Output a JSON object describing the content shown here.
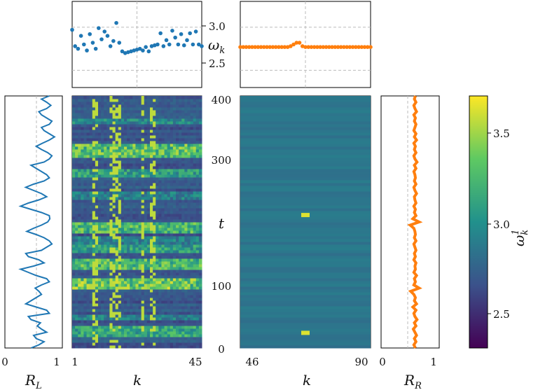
{
  "chart_data": [
    {
      "panel": "frequency-left",
      "type": "scatter",
      "xlabel": "",
      "ylabel": "ω_k",
      "yticks": [
        "2.5",
        "3.0"
      ],
      "ylim": [
        2.3,
        3.3
      ],
      "xlim": [
        1,
        45
      ],
      "color": "#1f77b4",
      "x": [
        1,
        2,
        3,
        4,
        5,
        6,
        7,
        8,
        9,
        10,
        11,
        12,
        13,
        14,
        15,
        16,
        17,
        18,
        19,
        20,
        21,
        22,
        23,
        24,
        25,
        26,
        27,
        28,
        29,
        30,
        31,
        32,
        33,
        34,
        35,
        36,
        37,
        38,
        39,
        40,
        41,
        42,
        43,
        44,
        45
      ],
      "values": [
        2.97,
        2.78,
        2.75,
        2.9,
        2.8,
        2.73,
        2.92,
        2.82,
        2.75,
        2.99,
        2.86,
        2.95,
        2.9,
        2.78,
        2.84,
        3.05,
        2.82,
        2.72,
        2.7,
        2.71,
        2.72,
        2.73,
        2.74,
        2.75,
        2.73,
        2.77,
        2.72,
        2.78,
        2.79,
        2.8,
        2.93,
        2.78,
        2.85,
        2.8,
        2.96,
        2.88,
        2.8,
        2.92,
        2.79,
        2.85,
        2.93,
        2.8,
        2.95,
        2.8,
        2.78
      ]
    },
    {
      "panel": "frequency-right",
      "type": "scatter",
      "xlim": [
        46,
        90
      ],
      "ylim": [
        2.3,
        3.3
      ],
      "color": "#ff7f0e",
      "x": [
        46,
        47,
        48,
        49,
        50,
        51,
        52,
        53,
        54,
        55,
        56,
        57,
        58,
        59,
        60,
        61,
        62,
        63,
        64,
        65,
        66,
        67,
        68,
        69,
        70,
        71,
        72,
        73,
        74,
        75,
        76,
        77,
        78,
        79,
        80,
        81,
        82,
        83,
        84,
        85,
        86,
        87,
        88,
        89,
        90
      ],
      "values": [
        2.77,
        2.77,
        2.77,
        2.77,
        2.77,
        2.77,
        2.77,
        2.77,
        2.77,
        2.77,
        2.77,
        2.77,
        2.77,
        2.77,
        2.77,
        2.77,
        2.77,
        2.78,
        2.8,
        2.82,
        2.82,
        2.78,
        2.77,
        2.77,
        2.77,
        2.77,
        2.77,
        2.77,
        2.77,
        2.77,
        2.77,
        2.77,
        2.77,
        2.77,
        2.77,
        2.77,
        2.77,
        2.77,
        2.77,
        2.77,
        2.77,
        2.77,
        2.77,
        2.77,
        2.77
      ]
    },
    {
      "panel": "order-left",
      "type": "line",
      "xlabel": "R_L",
      "xticks": [
        "0",
        "1"
      ],
      "xlim": [
        0,
        1.1
      ],
      "ylim": [
        0,
        400
      ],
      "color": "#1f77b4",
      "x": [
        0.5,
        0.65,
        0.75,
        0.6,
        0.55,
        0.8,
        0.7,
        0.62,
        0.68,
        0.5,
        0.45,
        0.85,
        0.8,
        0.6,
        0.4,
        0.5,
        0.6,
        0.7,
        0.65,
        0.58,
        0.7,
        0.85,
        0.8,
        0.6,
        0.45,
        0.3,
        0.55,
        0.75,
        0.65,
        0.45,
        0.4,
        0.7,
        0.8,
        0.9,
        0.85,
        0.75,
        0.6,
        0.42,
        0.55,
        0.7,
        0.82,
        0.86,
        0.85,
        0.7,
        0.5,
        0.3,
        0.45,
        0.65,
        0.8,
        0.7,
        0.55,
        0.4,
        0.55,
        0.75,
        0.85,
        0.8,
        0.7,
        0.6,
        0.5,
        0.75,
        0.85,
        0.9,
        0.82,
        0.7,
        0.6,
        0.72,
        0.85,
        0.95,
        0.85,
        0.75,
        0.7,
        0.85,
        0.9,
        0.8,
        0.7,
        0.65,
        0.8,
        0.88,
        0.8,
        0.7,
        0.85
      ],
      "values": [
        0,
        5,
        10,
        15,
        20,
        25,
        30,
        35,
        40,
        45,
        50,
        55,
        60,
        65,
        70,
        75,
        80,
        85,
        90,
        95,
        100,
        105,
        110,
        115,
        120,
        125,
        130,
        135,
        140,
        145,
        150,
        155,
        160,
        165,
        170,
        175,
        180,
        185,
        190,
        195,
        200,
        205,
        210,
        215,
        220,
        225,
        230,
        235,
        240,
        245,
        250,
        255,
        260,
        265,
        270,
        275,
        280,
        285,
        290,
        295,
        300,
        305,
        310,
        315,
        320,
        325,
        330,
        335,
        340,
        345,
        350,
        355,
        360,
        365,
        370,
        375,
        380,
        385,
        390,
        395,
        400
      ]
    },
    {
      "panel": "order-right",
      "type": "line",
      "xlabel": "R_R",
      "xticks": [
        "0",
        "1"
      ],
      "xlim": [
        0,
        1.1
      ],
      "ylim": [
        0,
        400
      ],
      "color": "#ff7f0e",
      "x": [
        0.65,
        0.62,
        0.66,
        0.63,
        0.67,
        0.64,
        0.61,
        0.66,
        0.63,
        0.68,
        0.64,
        0.62,
        0.66,
        0.6,
        0.67,
        0.63,
        0.65,
        0.62,
        0.56,
        0.72,
        0.62,
        0.65,
        0.63,
        0.67,
        0.62,
        0.65,
        0.64,
        0.66,
        0.62,
        0.65,
        0.63,
        0.66,
        0.64,
        0.62,
        0.66,
        0.63,
        0.65,
        0.64,
        0.62,
        0.55,
        0.72,
        0.6,
        0.66,
        0.63,
        0.65,
        0.62,
        0.66,
        0.64,
        0.63,
        0.67,
        0.64,
        0.62,
        0.66,
        0.63,
        0.65,
        0.64,
        0.62,
        0.66,
        0.63,
        0.68,
        0.64,
        0.62,
        0.66,
        0.63,
        0.65,
        0.62,
        0.67,
        0.63,
        0.66,
        0.62,
        0.64,
        0.66,
        0.63,
        0.65,
        0.62,
        0.67,
        0.64,
        0.62,
        0.66,
        0.63,
        0.65
      ],
      "values": [
        0,
        5,
        10,
        15,
        20,
        25,
        30,
        35,
        40,
        45,
        50,
        55,
        60,
        65,
        70,
        75,
        80,
        85,
        90,
        95,
        100,
        105,
        110,
        115,
        120,
        125,
        130,
        135,
        140,
        145,
        150,
        155,
        160,
        165,
        170,
        175,
        180,
        185,
        190,
        195,
        200,
        205,
        210,
        215,
        220,
        225,
        230,
        235,
        240,
        245,
        250,
        255,
        260,
        265,
        270,
        275,
        280,
        285,
        290,
        295,
        300,
        305,
        310,
        315,
        320,
        325,
        330,
        335,
        340,
        345,
        350,
        355,
        360,
        365,
        370,
        375,
        380,
        385,
        390,
        395,
        400
      ]
    },
    {
      "panel": "heatmap-left",
      "type": "heatmap",
      "xlabel": "k",
      "xticks": [
        "1",
        "45"
      ],
      "xlim": [
        1,
        45
      ],
      "ylim": [
        0,
        400
      ],
      "bright_columns_k": [
        8,
        9,
        14,
        15,
        16,
        17,
        25,
        28,
        29
      ],
      "hot_bands_t": [
        [
          20,
          30,
          0.75
        ],
        [
          45,
          50,
          0.55
        ],
        [
          95,
          108,
          0.95
        ],
        [
          125,
          135,
          0.85
        ],
        [
          150,
          158,
          0.7
        ],
        [
          165,
          172,
          0.55
        ],
        [
          185,
          195,
          0.85
        ],
        [
          235,
          242,
          0.55
        ],
        [
          272,
          280,
          0.7
        ],
        [
          305,
          318,
          0.9
        ],
        [
          355,
          360,
          0.6
        ]
      ]
    },
    {
      "panel": "heatmap-right",
      "type": "heatmap",
      "xlabel": "k",
      "xticks": [
        "46",
        "90"
      ],
      "xlim": [
        46,
        90
      ],
      "ylim": [
        0,
        400
      ],
      "ylabel": "t",
      "yticks": [
        "0",
        "100",
        "200",
        "300",
        "400"
      ],
      "hot_spots": [
        {
          "k": 68,
          "t": 24
        },
        {
          "k": 68,
          "t": 211
        }
      ]
    },
    {
      "panel": "colorbar",
      "type": "colorbar",
      "label": "ω_k^1",
      "ticks": [
        "2.5",
        "3.0",
        "3.5"
      ],
      "range": [
        2.3,
        3.7
      ]
    }
  ],
  "labels": {
    "omega_axis": "ω",
    "omega_sub": "k",
    "t_axis": "t",
    "k_axis": "k",
    "rl_main": "R",
    "rl_sub": "L",
    "rr_main": "R",
    "rr_sub": "R",
    "cb_main": "ω",
    "cb_sub": "k",
    "cb_sup": "1"
  },
  "colors": {
    "series_left": "#1f77b4",
    "series_right": "#ff7f0e",
    "viridis": [
      "#440154",
      "#3b528b",
      "#21918c",
      "#5ec962",
      "#fde725"
    ]
  }
}
